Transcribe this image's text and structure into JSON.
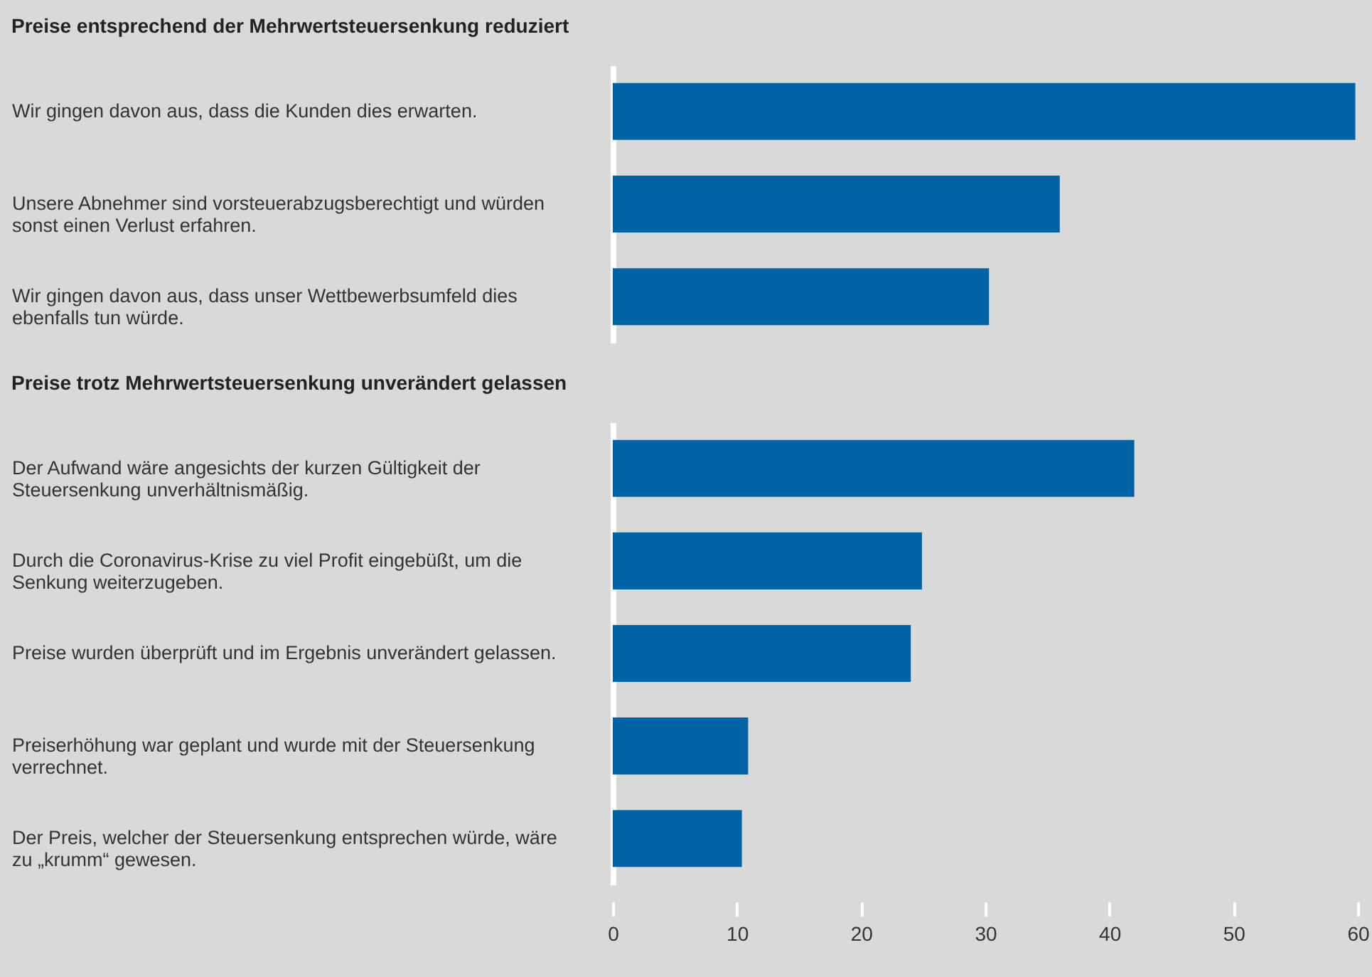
{
  "chart_data": [
    {
      "type": "bar",
      "orientation": "horizontal",
      "title": "Preise entsprechend der Mehrwertsteuersenkung reduziert",
      "categories": [
        "Wir gingen davon aus, dass die Kunden dies erwarten.",
        "Unsere Abnehmer sind vorsteuerabzugsberechtigt und würden sonst einen Verlust erfahren.",
        "Wir gingen davon aus, dass unser Wettbewerbsumfeld dies ebenfalls tun würde."
      ],
      "values": [
        59.8,
        36.0,
        30.3
      ],
      "color": "#0063a6",
      "xlim": [
        0,
        60
      ],
      "tick_labels": "y",
      "grid": false
    },
    {
      "type": "bar",
      "orientation": "horizontal",
      "title": "Preise trotz Mehrwertsteuersenkung unverändert gelassen",
      "categories": [
        "Der Aufwand wäre angesichts der kurzen Gültigkeit der Steuersenkung unverhältnismäßig.",
        "Durch die Coronavirus-Krise zu viel Profit eingebüßt, um die Senkung weiterzugeben.",
        "Preise wurden überprüft und im Ergebnis unverändert gelassen.",
        "Preiserhöhung war geplant und wurde mit der Steuersenkung verrechnet.",
        "Der Preis, welcher der Steuersenkung entsprechen würde, wäre zu „krumm“ gewesen."
      ],
      "values": [
        42.0,
        24.9,
        24.0,
        10.9,
        10.4
      ],
      "color": "#0063a6",
      "xlim": [
        0,
        60
      ],
      "xticks": [
        0,
        10,
        20,
        30,
        40,
        50,
        60
      ],
      "grid": false
    }
  ]
}
